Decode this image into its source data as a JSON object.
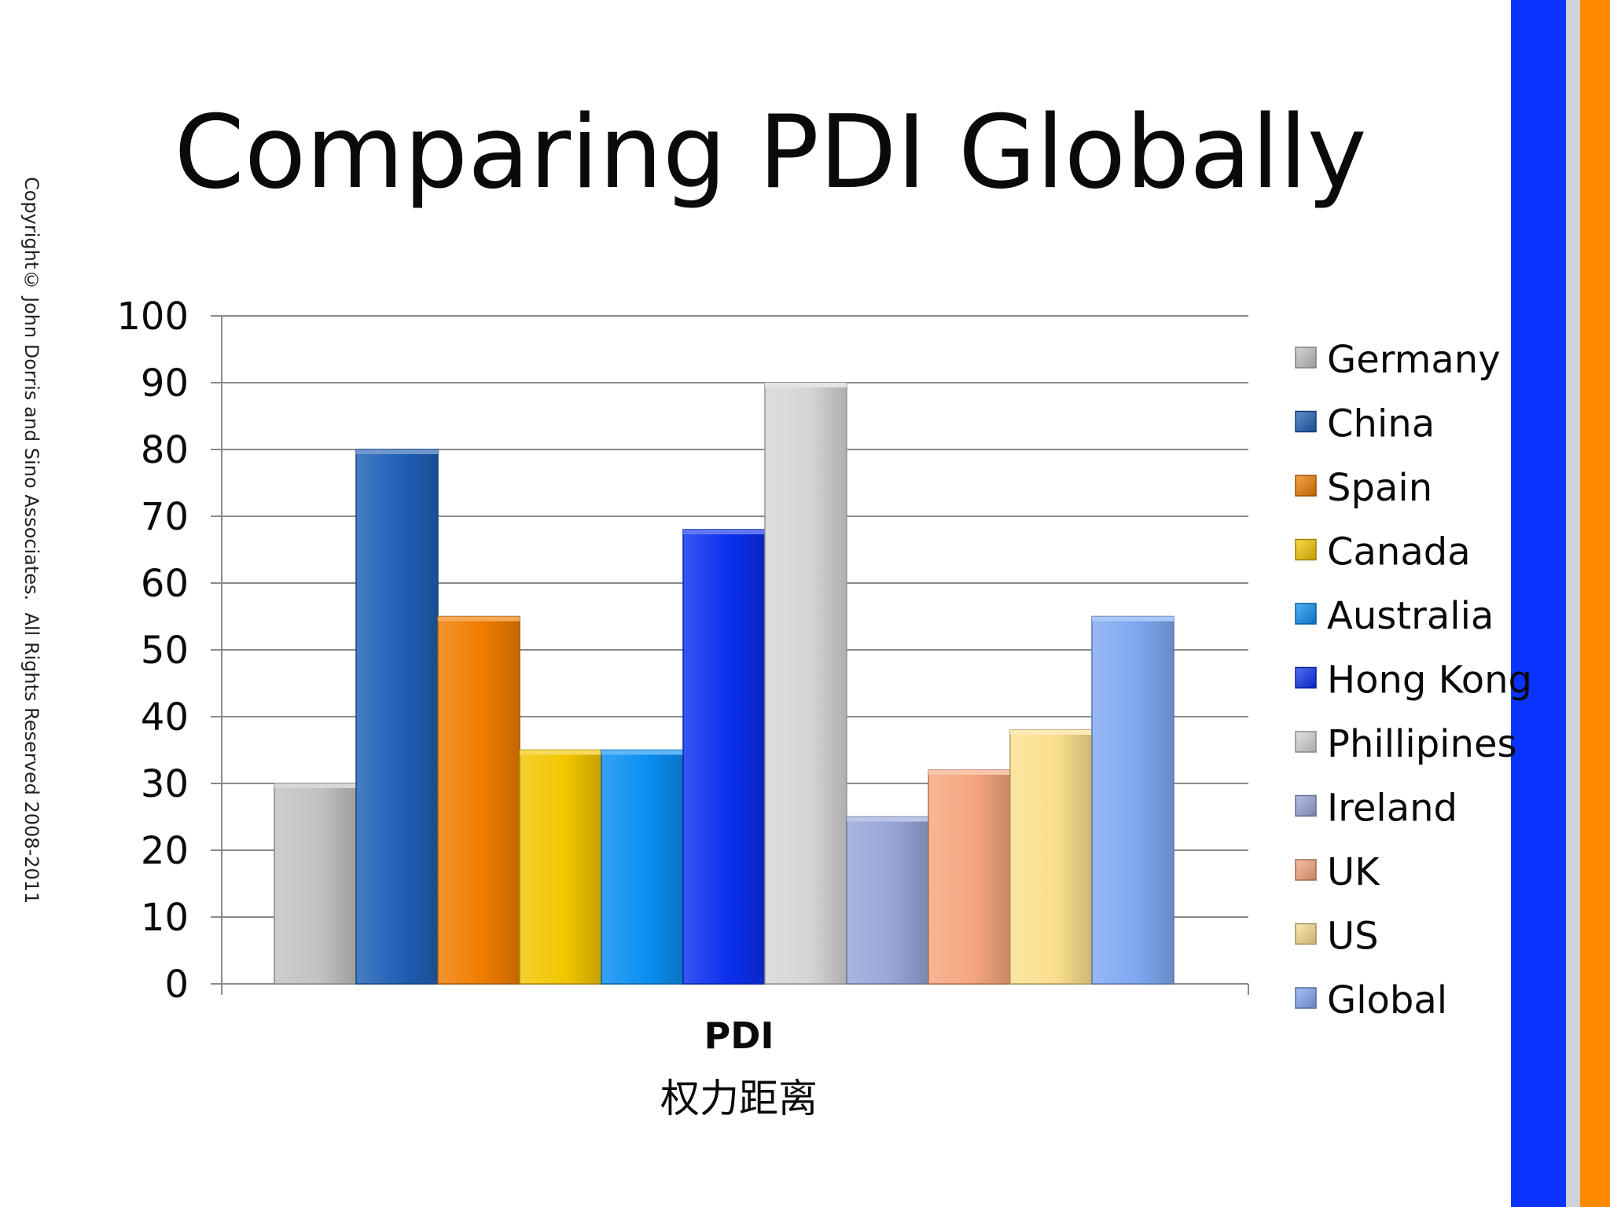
{
  "slide": {
    "title": "Comparing PDI Globally",
    "copyright": "Copyright© John Dorris and Sino Associates.  All Rights Reserved 2008-2011",
    "stripe_colors": [
      "#0b33ff",
      "#cfd2d6",
      "#ff8a00"
    ]
  },
  "chart_data": {
    "type": "bar",
    "categories": [
      "PDI"
    ],
    "category_sublabel": "权力距离",
    "ylim": [
      0,
      100
    ],
    "yticks": [
      0,
      10,
      20,
      30,
      40,
      50,
      60,
      70,
      80,
      90,
      100
    ],
    "grid": true,
    "legend_position": "right",
    "series": [
      {
        "name": "Germany",
        "value": 30,
        "color": "#c2c2c2"
      },
      {
        "name": "China",
        "value": 80,
        "color": "#1f5fb5"
      },
      {
        "name": "Spain",
        "value": 55,
        "color": "#f07c00"
      },
      {
        "name": "Canada",
        "value": 35,
        "color": "#f2c600"
      },
      {
        "name": "Australia",
        "value": 35,
        "color": "#0a8ef2"
      },
      {
        "name": "Hong Kong",
        "value": 68,
        "color": "#0b30ee"
      },
      {
        "name": "Phillipines",
        "value": 90,
        "color": "#d5d5d5"
      },
      {
        "name": "Ireland",
        "value": 25,
        "color": "#97a6d9"
      },
      {
        "name": "UK",
        "value": 32,
        "color": "#f6a57e"
      },
      {
        "name": "US",
        "value": 38,
        "color": "#fbdf8e"
      },
      {
        "name": "Global",
        "value": 55,
        "color": "#7fa8f2"
      }
    ]
  }
}
